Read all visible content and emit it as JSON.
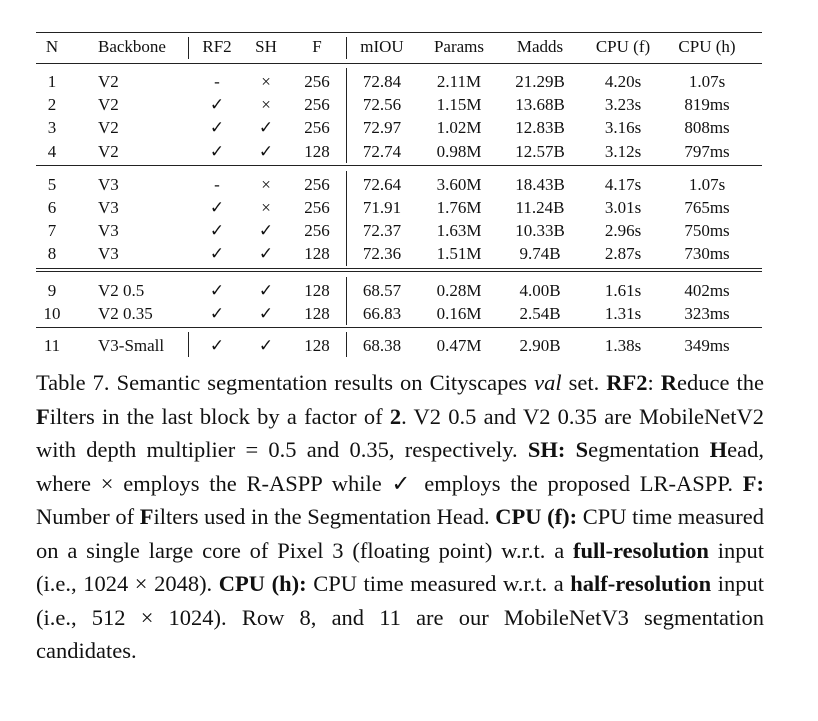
{
  "table": {
    "headers": [
      "N",
      "Backbone",
      "RF2",
      "SH",
      "F",
      "mIOU",
      "Params",
      "Madds",
      "CPU (f)",
      "CPU (h)"
    ],
    "groups": [
      [
        [
          "1",
          "V2",
          "-",
          "×",
          "256",
          "72.84",
          "2.11M",
          "21.29B",
          "4.20s",
          "1.07s"
        ],
        [
          "2",
          "V2",
          "✓",
          "×",
          "256",
          "72.56",
          "1.15M",
          "13.68B",
          "3.23s",
          "819ms"
        ],
        [
          "3",
          "V2",
          "✓",
          "✓",
          "256",
          "72.97",
          "1.02M",
          "12.83B",
          "3.16s",
          "808ms"
        ],
        [
          "4",
          "V2",
          "✓",
          "✓",
          "128",
          "72.74",
          "0.98M",
          "12.57B",
          "3.12s",
          "797ms"
        ]
      ],
      [
        [
          "5",
          "V3",
          "-",
          "×",
          "256",
          "72.64",
          "3.60M",
          "18.43B",
          "4.17s",
          "1.07s"
        ],
        [
          "6",
          "V3",
          "✓",
          "×",
          "256",
          "71.91",
          "1.76M",
          "11.24B",
          "3.01s",
          "765ms"
        ],
        [
          "7",
          "V3",
          "✓",
          "✓",
          "256",
          "72.37",
          "1.63M",
          "10.33B",
          "2.96s",
          "750ms"
        ],
        [
          "8",
          "V3",
          "✓",
          "✓",
          "128",
          "72.36",
          "1.51M",
          "9.74B",
          "2.87s",
          "730ms"
        ]
      ],
      [
        [
          "9",
          "V2 0.5",
          "✓",
          "✓",
          "128",
          "68.57",
          "0.28M",
          "4.00B",
          "1.61s",
          "402ms"
        ],
        [
          "10",
          "V2 0.35",
          "✓",
          "✓",
          "128",
          "66.83",
          "0.16M",
          "2.54B",
          "1.31s",
          "323ms"
        ]
      ],
      [
        [
          "11",
          "V3-Small",
          "✓",
          "✓",
          "128",
          "68.38",
          "0.47M",
          "2.90B",
          "1.38s",
          "349ms"
        ]
      ]
    ]
  },
  "caption": {
    "label": "Table 7.",
    "t1": " Semantic segmentation results on Cityscapes ",
    "t1_italic": "val",
    "t1_end": " set. ",
    "rf2": [
      {
        "text": "RF2",
        "bold": true
      },
      {
        "text": ": ",
        "bold": false
      },
      {
        "text": "R",
        "bold": true
      },
      {
        "text": "educe the ",
        "bold": false
      },
      {
        "text": "F",
        "bold": true
      },
      {
        "text": "ilters in the last block by a factor of ",
        "bold": false
      },
      {
        "text": "2",
        "bold": true
      },
      {
        "text": ".  V2 0.5 and V2 0.35 are MobileNetV2 with depth multiplier = 0.5 and 0.35, respectively.  ",
        "bold": false
      },
      {
        "text": "SH: S",
        "bold": true
      },
      {
        "text": "egmentation ",
        "bold": false
      },
      {
        "text": "H",
        "bold": true
      },
      {
        "text": "ead, where × employs the R-ASPP while ✓ employs the proposed LR-ASPP. ",
        "bold": false
      },
      {
        "text": "F:",
        "bold": true
      },
      {
        "text": " Number of ",
        "bold": false
      },
      {
        "text": "F",
        "bold": true
      },
      {
        "text": "ilters used in the Segmentation Head.  ",
        "bold": false
      },
      {
        "text": "CPU (f):",
        "bold": true
      },
      {
        "text": " CPU time measured on a single large core of Pixel 3 (floating point) w.r.t. a ",
        "bold": false
      },
      {
        "text": "full-resolution",
        "bold": true
      },
      {
        "text": " input (i.e., 1024 × 2048).  ",
        "bold": false
      },
      {
        "text": "CPU (h):",
        "bold": true
      },
      {
        "text": " CPU time measured w.r.t. a ",
        "bold": false
      },
      {
        "text": "half-resolution",
        "bold": true
      },
      {
        "text": " input (i.e., 512 × 1024). Row 8, and 11 are our MobileNetV3 segmentation candidates.",
        "bold": false
      }
    ]
  }
}
